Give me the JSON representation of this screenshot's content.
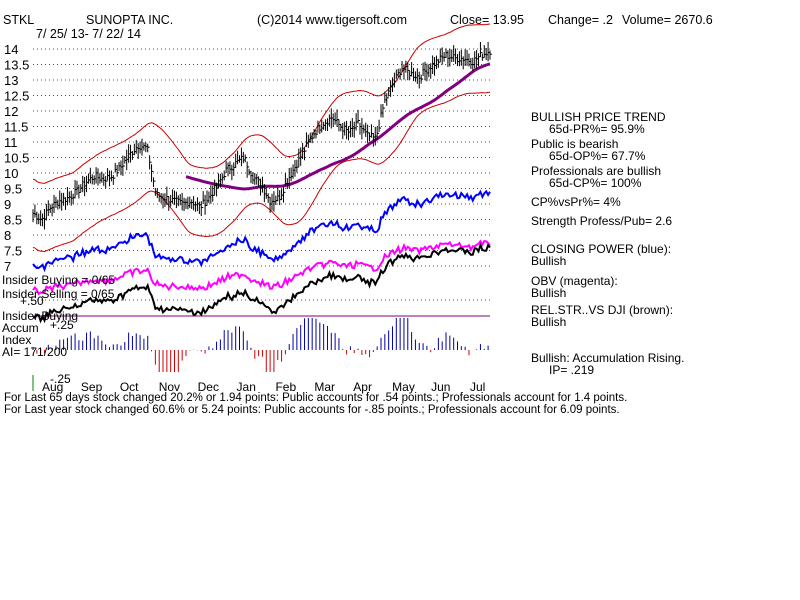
{
  "header": {
    "ticker": "STKL",
    "company": "SUNOPTA INC.",
    "copyright": "(C)2014 www.tigersoft.com",
    "close": "Close=  13.95",
    "change": "Change= .2",
    "volume": "Volume= 2670.6",
    "date_range": "7/ 25/ 13- 7/ 22/ 14"
  },
  "side_panel": [
    {
      "text": "BULLISH PRICE TREND",
      "indent": false
    },
    {
      "text": "65d-PR%= 95.9%",
      "indent": true
    },
    {
      "text": "Public is bearish",
      "indent": false
    },
    {
      "text": "65d-OP%= 67.7%",
      "indent": true
    },
    {
      "text": "Professionals are bullish",
      "indent": false
    },
    {
      "text": "65d-CP%= 100%",
      "indent": true
    },
    {
      "text": "CP%vsPr%=  4%",
      "indent": false
    },
    {
      "text": "Strength Profess/Pub= 2.6",
      "indent": false
    },
    {
      "text": "CLOSING POWER (blue):",
      "indent": false
    },
    {
      "text": "Bullish",
      "indent": false
    },
    {
      "text": "OBV (magenta):",
      "indent": false
    },
    {
      "text": "Bullish",
      "indent": false
    },
    {
      "text": "REL.STR..VS DJI (brown):",
      "indent": false
    },
    {
      "text": "Bullish",
      "indent": false
    },
    {
      "text": "Bullish: Accumulation Rising.",
      "indent": false
    },
    {
      "text": "IP=  .219",
      "indent": true
    }
  ],
  "indicator_labels": {
    "insider_buying": "Insider Buying = 0/65",
    "insider_selling": "Insider Selling = 0/65",
    "insider_buying2": "Insider Buying",
    "accum": "Accum",
    "index": "Index",
    "ai": "AI= 171/200",
    "level_p50": "+.50",
    "level_p25": "+.25",
    "level_m25": "-.25"
  },
  "footer": {
    "line1": "For Last 65 days stock changed  20.2% or  1.94 points:  Public accounts for  .54 points.;  Professionals account for  1.4 points.",
    "line2": "For Last year stock changed  60.6% or  5.24 points:  Public accounts for -.85 points.;  Professionals account for  6.09 points."
  },
  "colors": {
    "price": "#000000",
    "bands": "#cc0000",
    "ma": "#800080",
    "closing_power": "#0000ff",
    "obv": "#ff00ff",
    "rel_strength": "#000000",
    "grid": "#008000",
    "accum_pos": "#0000aa",
    "accum_neg": "#cc0000"
  },
  "chart_data": {
    "type": "line",
    "ylim": [
      7,
      14
    ],
    "yticks": [
      14,
      13.5,
      13,
      12.5,
      12,
      11.5,
      11,
      10.5,
      10,
      9.5,
      9,
      8.5,
      8,
      7.5,
      7
    ],
    "x_month_labels": [
      "Aug",
      "Sep",
      "Oct",
      "Nov",
      "Dec",
      "Jan",
      "Feb",
      "Mar",
      "Apr",
      "May",
      "Jun",
      "Jul"
    ],
    "price_close": [
      [
        "Jul 25",
        8.7
      ],
      [
        "Aug 1",
        8.5
      ],
      [
        "Aug 8",
        8.9
      ],
      [
        "Aug 15",
        9.1
      ],
      [
        "Aug 22",
        9.2
      ],
      [
        "Aug 29",
        9.4
      ],
      [
        "Sep 5",
        9.7
      ],
      [
        "Sep 12",
        9.9
      ],
      [
        "Sep 19",
        9.8
      ],
      [
        "Sep 26",
        9.9
      ],
      [
        "Oct 3",
        10.2
      ],
      [
        "Oct 10",
        10.6
      ],
      [
        "Oct 17",
        10.9
      ],
      [
        "Oct 24",
        10.8
      ],
      [
        "Oct 31",
        9.3
      ],
      [
        "Nov 7",
        9.2
      ],
      [
        "Nov 14",
        9.1
      ],
      [
        "Nov 21",
        9.0
      ],
      [
        "Nov 28",
        9.1
      ],
      [
        "Dec 5",
        8.9
      ],
      [
        "Dec 12",
        9.2
      ],
      [
        "Dec 19",
        9.6
      ],
      [
        "Dec 26",
        10.1
      ],
      [
        "Jan 2",
        10.3
      ],
      [
        "Jan 9",
        10.5
      ],
      [
        "Jan 16",
        9.9
      ],
      [
        "Jan 23",
        9.6
      ],
      [
        "Jan 30",
        9.1
      ],
      [
        "Feb 6",
        9.2
      ],
      [
        "Feb 13",
        9.8
      ],
      [
        "Feb 20",
        10.3
      ],
      [
        "Feb 27",
        10.8
      ],
      [
        "Mar 6",
        11.3
      ],
      [
        "Mar 13",
        11.6
      ],
      [
        "Mar 20",
        11.8
      ],
      [
        "Mar 27",
        11.5
      ],
      [
        "Apr 3",
        11.3
      ],
      [
        "Apr 10",
        11.6
      ],
      [
        "Apr 17",
        11.2
      ],
      [
        "Apr 24",
        11.1
      ],
      [
        "May 1",
        12.3
      ],
      [
        "May 8",
        12.9
      ],
      [
        "May 15",
        13.4
      ],
      [
        "May 22",
        13.2
      ],
      [
        "May 29",
        13.1
      ],
      [
        "Jun 5",
        13.4
      ],
      [
        "Jun 12",
        13.6
      ],
      [
        "Jun 19",
        13.8
      ],
      [
        "Jun 26",
        13.7
      ],
      [
        "Jul 3",
        13.7
      ],
      [
        "Jul 10",
        13.6
      ],
      [
        "Jul 17",
        13.8
      ],
      [
        "Jul 22",
        13.95
      ]
    ],
    "series": [
      {
        "name": "CLOSING POWER (blue)",
        "trend": "rising"
      },
      {
        "name": "OBV (magenta)",
        "trend": "rising"
      },
      {
        "name": "REL.STR..VS DJI (brown)",
        "trend": "rising"
      }
    ],
    "accumulation_index_range": [
      -0.25,
      0.5
    ],
    "grid": true
  }
}
